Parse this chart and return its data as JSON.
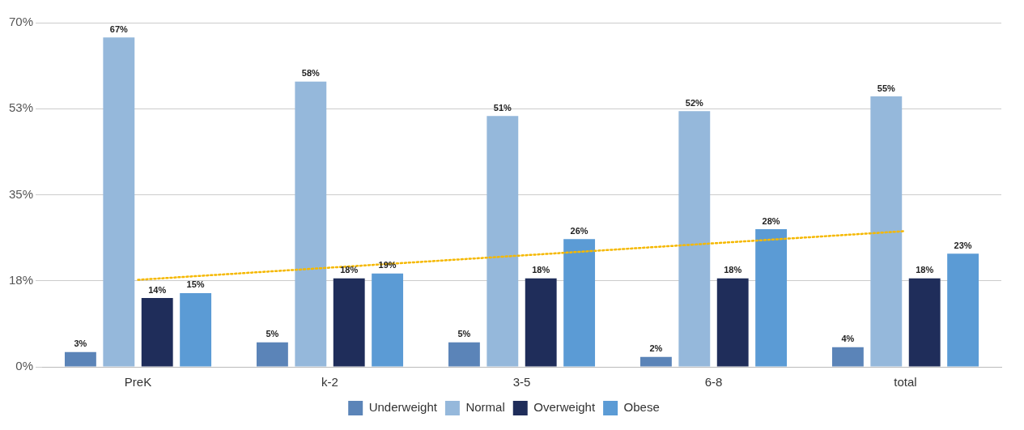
{
  "chart_data": {
    "type": "bar",
    "categories": [
      "PreK",
      "k-2",
      "3-5",
      "6-8",
      "total"
    ],
    "series": [
      {
        "name": "Underweight",
        "color": "#5b84b8",
        "values": [
          3,
          5,
          5,
          2,
          4
        ],
        "value_labels": [
          "3%",
          "5%",
          "5%",
          "2%",
          "4%"
        ]
      },
      {
        "name": "Normal",
        "color": "#95b8db",
        "values": [
          67,
          58,
          51,
          52,
          55
        ],
        "value_labels": [
          "67%",
          "58%",
          "51%",
          "52%",
          "55%"
        ]
      },
      {
        "name": "Overweight",
        "color": "#1f2d5a",
        "values": [
          14,
          18,
          18,
          18,
          18
        ],
        "value_labels": [
          "14%",
          "18%",
          "18%",
          "18%",
          "18%"
        ]
      },
      {
        "name": "Obese",
        "color": "#5b9bd5",
        "values": [
          15,
          19,
          26,
          28,
          23
        ],
        "value_labels": [
          "15%",
          "19%",
          "26%",
          "28%",
          "23%"
        ]
      },
      {
        "type": "line",
        "color": "#f5b800",
        "x": [
          "PreK",
          "total"
        ],
        "values": [
          17.7,
          27.6
        ],
        "line_style": "dotted",
        "marker": "none"
      }
    ],
    "ylim": [
      0,
      70
    ],
    "yticks": [
      {
        "value": 0,
        "label": "0%"
      },
      {
        "value": 17.5,
        "label": "18%"
      },
      {
        "value": 35,
        "label": "35%"
      },
      {
        "value": 52.5,
        "label": "53%"
      },
      {
        "value": 70,
        "label": "70%"
      }
    ],
    "grid": "y",
    "legend": "bottom"
  }
}
